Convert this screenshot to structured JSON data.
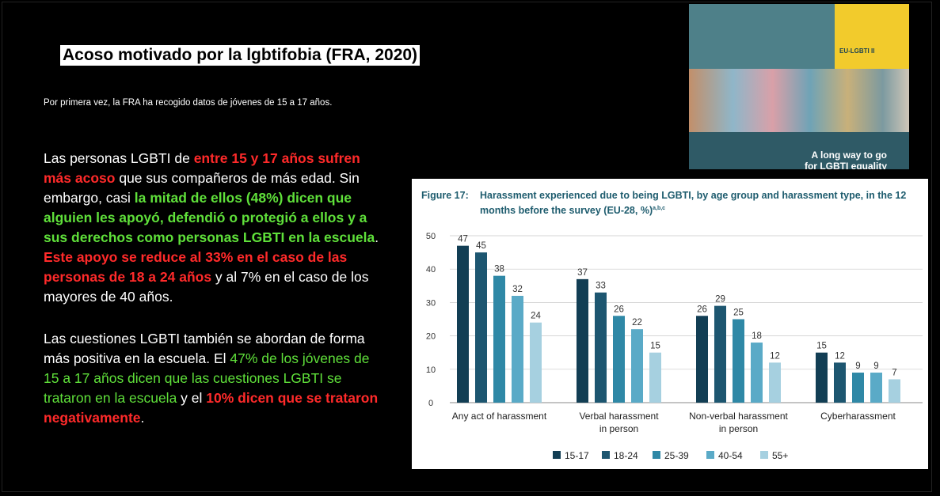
{
  "slide": {
    "title": "Acoso motivado por la lgbtifobia (FRA, 2020)",
    "subtitle": "Por primera vez, la FRA ha recogido datos de jóvenes de 15 a 17 años.",
    "paragraph1": {
      "s1": "Las personas LGBTI de ",
      "s2": "entre 15 y 17 años sufren más acoso",
      "s3": " que sus compañeros de más edad. Sin embargo, casi ",
      "s4": "la mitad de ellos (48%) dicen que alguien les apoyó, defendió o protegió a ellos y a sus derechos como personas LGBTI en la escuela",
      "s5": ". ",
      "s6": "Este apoyo se reduce al 33% en el caso de las personas de 18 a 24 años",
      "s7": " y al 7% en el caso de los mayores de 40 años."
    },
    "paragraph2": {
      "s1": "Las cuestiones LGBTI también se abordan de forma más positiva en la escuela. El ",
      "s2": "47% de los jóvenes de 15 a 17 años dicen que las cuestiones LGBTI se trataron en la escuela",
      "s3": " y el ",
      "s4": "10% dicen que se trataron negativamente",
      "s5": "."
    }
  },
  "cover": {
    "badge": "EU-LGBTI II",
    "caption_line1": "A long way to go",
    "caption_line2": "for LGBTI equality"
  },
  "figure": {
    "label": "Figure 17:",
    "title_line1": "Harassment experienced due to being LGBTI, by age group and harassment type, in the 12",
    "title_line2": "months before the survey (EU-28, %)",
    "title_sup": "a,b,c"
  },
  "colors": {
    "series": [
      "#123e54",
      "#1d5670",
      "#2f88a6",
      "#5aaac7",
      "#a6d0e0"
    ],
    "accent_red": "#ff2a2a",
    "accent_green": "#5fe03a"
  },
  "chart_data": {
    "type": "bar",
    "categories": [
      "Any act of harassment",
      "Verbal harassment in person",
      "Non-verbal harassment in person",
      "Cyberharassment"
    ],
    "category_lines": [
      [
        "Any act of harassment"
      ],
      [
        "Verbal harassment",
        "in person"
      ],
      [
        "Non-verbal harassment",
        "in person"
      ],
      [
        "Cyberharassment"
      ]
    ],
    "series": [
      {
        "name": "15-17",
        "values": [
          47,
          37,
          26,
          15
        ]
      },
      {
        "name": "18-24",
        "values": [
          45,
          33,
          29,
          12
        ]
      },
      {
        "name": "25-39",
        "values": [
          38,
          26,
          25,
          9
        ]
      },
      {
        "name": "40-54",
        "values": [
          32,
          22,
          18,
          9
        ]
      },
      {
        "name": "55+",
        "values": [
          24,
          15,
          12,
          7
        ]
      }
    ],
    "ylim": [
      0,
      50
    ],
    "yticks": [
      0,
      10,
      20,
      30,
      40,
      50
    ],
    "grid": true,
    "legend_position": "bottom"
  }
}
